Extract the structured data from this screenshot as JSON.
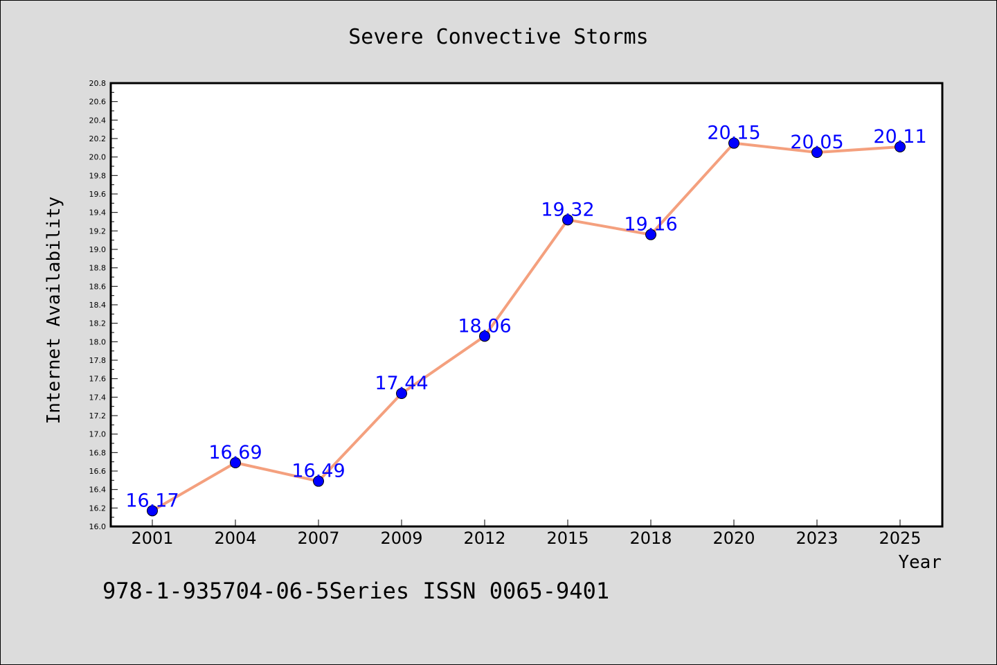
{
  "chart_data": {
    "type": "line",
    "title": "Severe Convective Storms",
    "xlabel": "Year",
    "ylabel": "Internet Availability",
    "categories": [
      "2001",
      "2004",
      "2007",
      "2009",
      "2012",
      "2015",
      "2018",
      "2020",
      "2023",
      "2025"
    ],
    "series": [
      {
        "values": [
          16.17,
          16.69,
          16.49,
          17.44,
          18.06,
          19.32,
          19.16,
          20.15,
          20.05,
          20.11
        ]
      }
    ],
    "data_labels": [
      "16.17",
      "16.69",
      "16.49",
      "17.44",
      "18.06",
      "19.32",
      "19.16",
      "20.15",
      "20.05",
      "20.11"
    ],
    "ylim": [
      16.0,
      20.8
    ],
    "yticks": [
      "16.0",
      "16.2",
      "16.4",
      "16.6",
      "16.8",
      "17.0",
      "17.2",
      "17.4",
      "17.6",
      "17.8",
      "18.0",
      "18.2",
      "18.4",
      "18.6",
      "18.8",
      "19.0",
      "19.2",
      "19.4",
      "19.6",
      "19.8",
      "20.0",
      "20.2",
      "20.4",
      "20.6",
      "20.8"
    ],
    "grid": false,
    "legend": "none",
    "colors": {
      "line": "#f4a07e",
      "marker": "#0000ff",
      "label": "#0000ff",
      "background": "#dcdcdc",
      "plot_background": "#ffffff"
    }
  },
  "footer_text": "978-1-935704-06-5Series ISSN 0065-9401"
}
